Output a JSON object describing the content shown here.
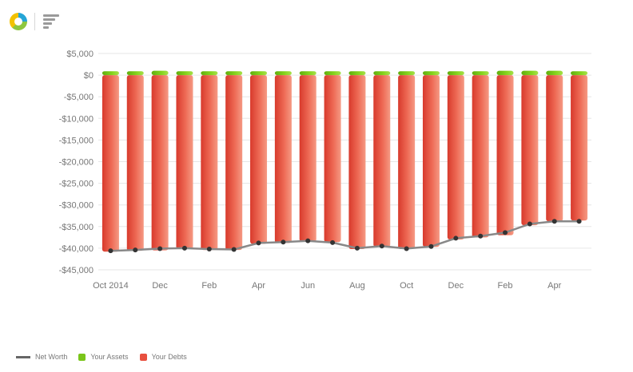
{
  "toolbar": {
    "icons": [
      "donut-chart-icon",
      "bar-list-icon"
    ]
  },
  "colors": {
    "assets": "#7ac51a",
    "debts": "#e8503f",
    "net_worth": "#888888",
    "grid": "#e6e6e6"
  },
  "chart_data": {
    "type": "bar",
    "title": "",
    "xlabel": "",
    "ylabel": "",
    "ylim": [
      -45000,
      5000
    ],
    "y_ticks": [
      {
        "value": 5000,
        "label": "$5,000"
      },
      {
        "value": 0,
        "label": "$0"
      },
      {
        "value": -5000,
        "label": "-$5,000"
      },
      {
        "value": -10000,
        "label": "-$10,000"
      },
      {
        "value": -15000,
        "label": "-$15,000"
      },
      {
        "value": -20000,
        "label": "-$20,000"
      },
      {
        "value": -25000,
        "label": "-$25,000"
      },
      {
        "value": -30000,
        "label": "-$30,000"
      },
      {
        "value": -35000,
        "label": "-$35,000"
      },
      {
        "value": -40000,
        "label": "-$40,000"
      },
      {
        "value": -45000,
        "label": "-$45,000"
      }
    ],
    "x_ticks": [
      {
        "index": 0,
        "label": "Oct 2014"
      },
      {
        "index": 2,
        "label": "Dec"
      },
      {
        "index": 4,
        "label": "Feb"
      },
      {
        "index": 6,
        "label": "Apr"
      },
      {
        "index": 8,
        "label": "Jun"
      },
      {
        "index": 10,
        "label": "Aug"
      },
      {
        "index": 12,
        "label": "Oct"
      },
      {
        "index": 14,
        "label": "Dec"
      },
      {
        "index": 16,
        "label": "Feb"
      },
      {
        "index": 18,
        "label": "Apr"
      }
    ],
    "series": [
      {
        "name": "Your Assets",
        "type": "bar",
        "values": [
          900,
          900,
          1000,
          900,
          900,
          900,
          900,
          900,
          900,
          900,
          900,
          900,
          900,
          900,
          900,
          900,
          1000,
          1000,
          1000,
          900
        ]
      },
      {
        "name": "Your Debts",
        "type": "bar",
        "values": [
          -40800,
          -40600,
          -40500,
          -40200,
          -40400,
          -40400,
          -39000,
          -38800,
          -38500,
          -38600,
          -40200,
          -39700,
          -40200,
          -39700,
          -38000,
          -37500,
          -37000,
          -34700,
          -33800,
          -33600
        ]
      },
      {
        "name": "Net Worth",
        "type": "line",
        "values": [
          -40600,
          -40400,
          -40100,
          -40000,
          -40200,
          -40300,
          -38800,
          -38600,
          -38300,
          -38700,
          -40000,
          -39500,
          -40100,
          -39600,
          -37700,
          -37200,
          -36400,
          -34400,
          -33800,
          -33800
        ]
      }
    ],
    "legend": {
      "placement": "bottom-left",
      "items": [
        {
          "label": "Net Worth",
          "swatch": "line",
          "color": "#666666"
        },
        {
          "label": "Your Assets",
          "swatch": "square",
          "color": "#7ac51a"
        },
        {
          "label": "Your Debts",
          "swatch": "square",
          "color": "#e8503f"
        }
      ]
    },
    "grid": true
  }
}
